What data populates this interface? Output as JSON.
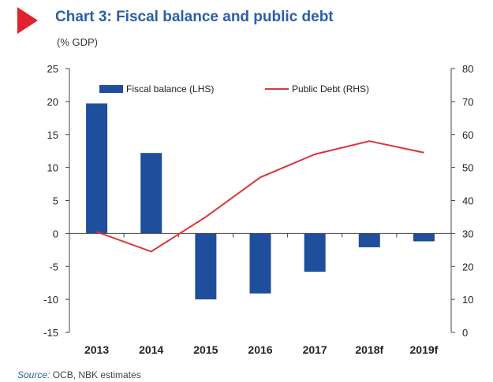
{
  "header": {
    "title": "Chart 3: Fiscal balance and public debt",
    "unit": "(% GDP)"
  },
  "source": {
    "label": "Source:",
    "text": "OCB, NBK estimates"
  },
  "colors": {
    "bar": "#1f4e9c",
    "line": "#d9363e",
    "title": "#2a5fa8",
    "marker": "#e0232f"
  },
  "chart_data": {
    "type": "bar",
    "categories": [
      "2013",
      "2014",
      "2015",
      "2016",
      "2017",
      "2018f",
      "2019f"
    ],
    "series": [
      {
        "name": "Fiscal balance (LHS)",
        "type": "bar",
        "axis": "left",
        "values": [
          19.7,
          12.2,
          -10.0,
          -9.1,
          -5.8,
          -2.1,
          -1.2
        ]
      },
      {
        "name": "Public Debt (RHS)",
        "type": "line",
        "axis": "right",
        "values": [
          30.5,
          24.5,
          35.0,
          47.0,
          54.0,
          58.0,
          54.5
        ]
      }
    ],
    "y_left": {
      "min": -15,
      "max": 25,
      "ticks": [
        "-15",
        "-10",
        "-5",
        "0",
        "5",
        "10",
        "15",
        "20",
        "25"
      ]
    },
    "y_right": {
      "min": 0,
      "max": 80,
      "ticks": [
        "0",
        "10",
        "20",
        "30",
        "40",
        "50",
        "60",
        "70",
        "80"
      ]
    },
    "legend_position": "top",
    "grid": false
  }
}
